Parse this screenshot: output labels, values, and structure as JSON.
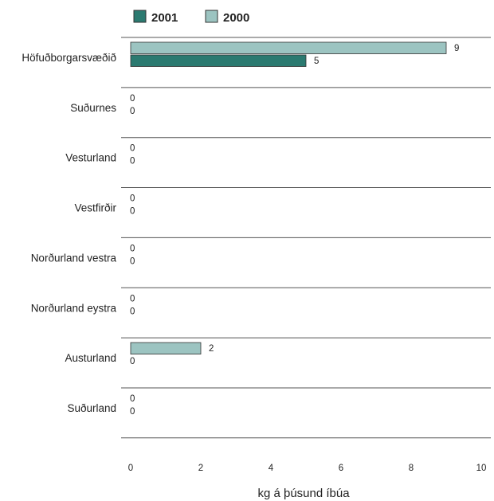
{
  "chart_data": {
    "type": "bar",
    "orientation": "horizontal",
    "categories": [
      "Höfuðborgarsvæðið",
      "Suðurnes",
      "Vesturland",
      "Vestfirðir",
      "Norðurland vestra",
      "Norðurland eystra",
      "Austurland",
      "Suðurland"
    ],
    "series": [
      {
        "name": "2000",
        "color": "#9cc4c1",
        "values": [
          9,
          0,
          0,
          0,
          0,
          0,
          2,
          0
        ]
      },
      {
        "name": "2001",
        "color": "#2b7a70",
        "values": [
          5,
          0,
          0,
          0,
          0,
          0,
          0,
          0
        ]
      }
    ],
    "legend_order": [
      "2001",
      "2000"
    ],
    "xlabel": "kg á þúsund íbúa",
    "xlim": [
      0,
      10
    ],
    "xticks": [
      0,
      2,
      4,
      6,
      8,
      10
    ],
    "legend_position": "top",
    "grid": false
  }
}
